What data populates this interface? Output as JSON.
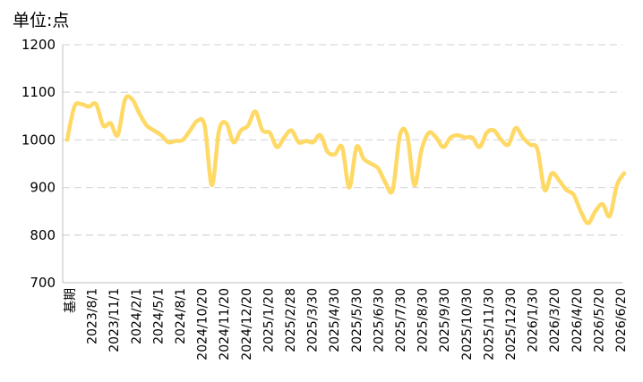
{
  "chart_data": {
    "type": "line",
    "unit_label": "单位:点",
    "ylim": [
      700,
      1200
    ],
    "y_ticks": [
      700,
      800,
      900,
      1000,
      1100,
      1200
    ],
    "grid": true,
    "line_color": "#FFD966",
    "x_tick_labels": [
      "基期",
      "2023/8/1",
      "2023/11/1",
      "2024/2/1",
      "2024/5/1",
      "2024/8/1",
      "2024/10/20",
      "2024/11/20",
      "2024/12/20",
      "2025/1/20",
      "2025/2/28",
      "2025/3/30",
      "2025/4/30",
      "2025/5/30",
      "2025/6/30",
      "2025/7/30",
      "2025/8/30",
      "2025/9/30",
      "2025/10/30",
      "2025/11/30",
      "2025/12/30",
      "2026/1/30",
      "2026/3/20",
      "2026/4/20",
      "2026/5/20",
      "2026/6/20"
    ],
    "series": [
      {
        "values": [
          1000,
          1070,
          1075,
          1070,
          1075,
          1030,
          1035,
          1010,
          1085,
          1085,
          1055,
          1030,
          1020,
          1010,
          995,
          998,
          1000,
          1020,
          1040,
          1030,
          905,
          1020,
          1035,
          995,
          1020,
          1030,
          1060,
          1020,
          1015,
          985,
          1005,
          1020,
          995,
          998,
          995,
          1010,
          975,
          970,
          985,
          900,
          985,
          960,
          950,
          940,
          910,
          895,
          1010,
          1010,
          905,
          980,
          1015,
          1005,
          985,
          1005,
          1010,
          1005,
          1005,
          985,
          1015,
          1020,
          1000,
          990,
          1025,
          1005,
          990,
          980,
          895,
          930,
          915,
          895,
          885,
          850,
          825,
          850,
          865,
          840,
          905,
          930
        ]
      }
    ]
  }
}
